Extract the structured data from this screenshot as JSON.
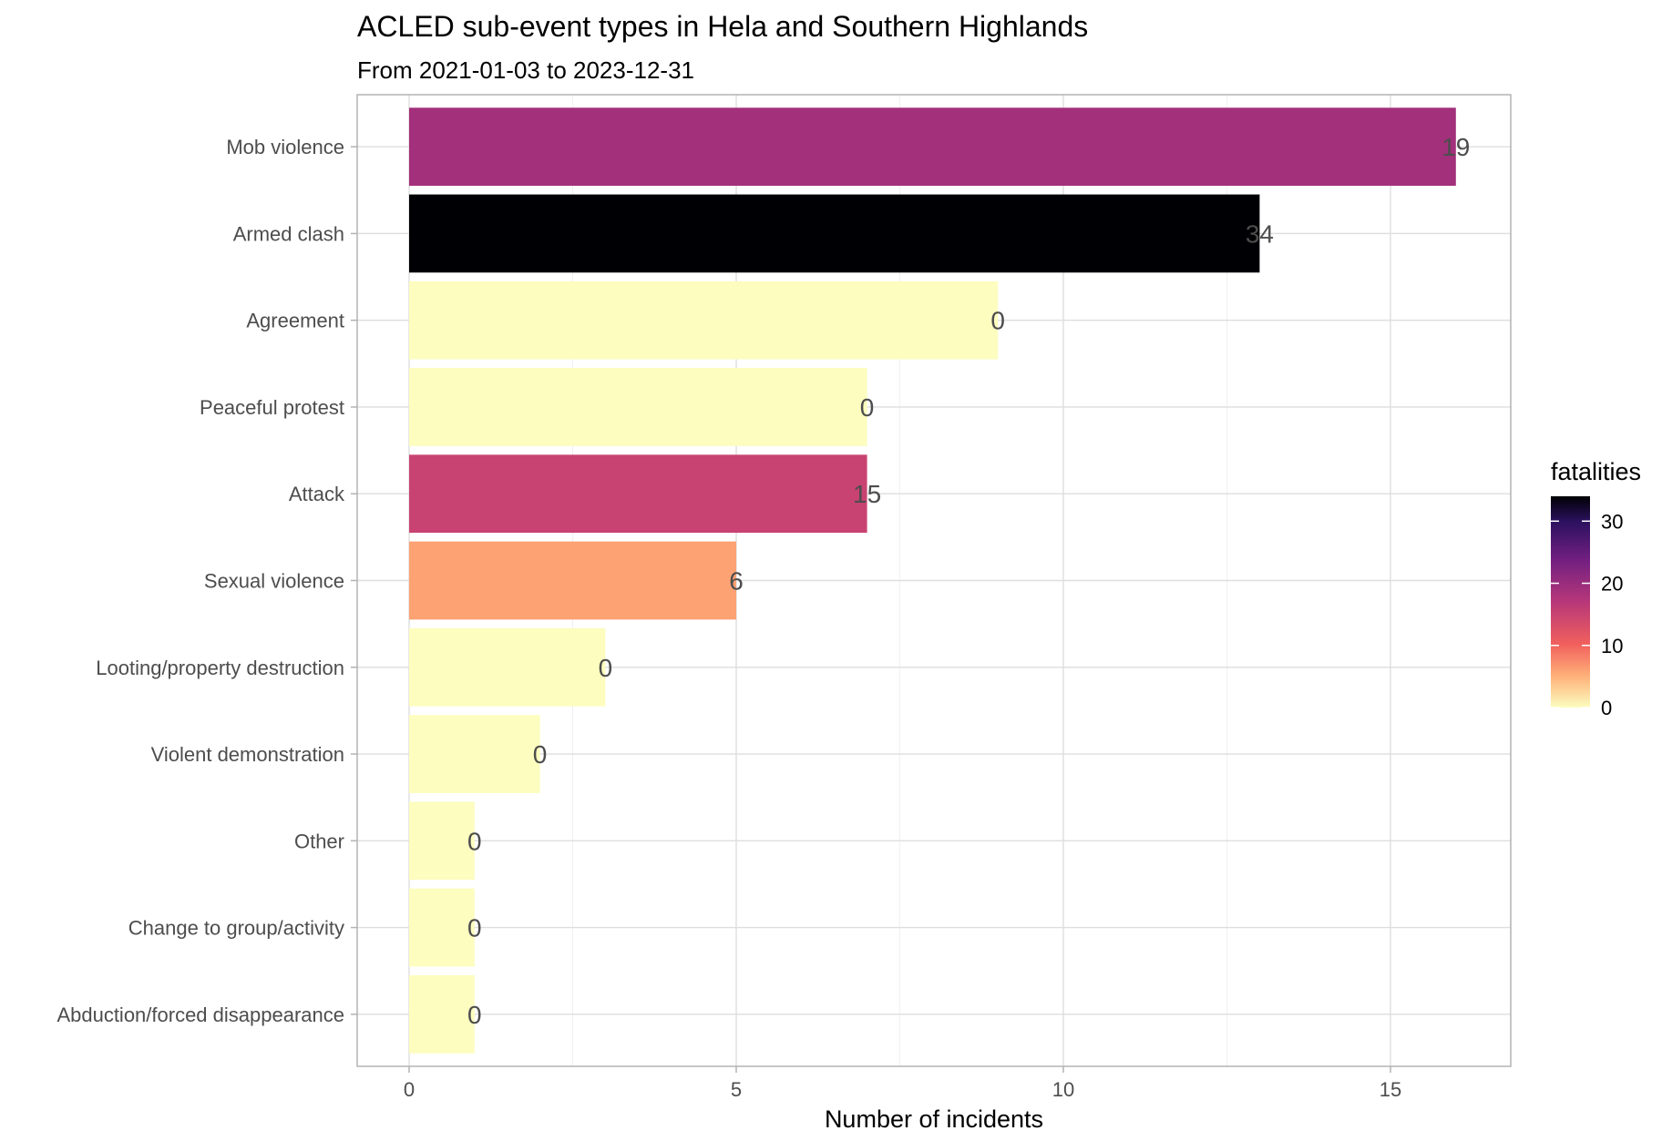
{
  "chart_data": {
    "type": "bar",
    "orientation": "horizontal",
    "title": "ACLED sub-event types in Hela and Southern Highlands",
    "subtitle": "From 2021-01-03 to 2023-12-31",
    "xlabel": "Number of incidents",
    "ylabel": "",
    "xlim": [
      0,
      17.6
    ],
    "xticks": [
      0,
      5,
      10,
      15
    ],
    "grid": true,
    "categories": [
      "Mob violence",
      "Armed clash",
      "Agreement",
      "Peaceful protest",
      "Attack",
      "Sexual violence",
      "Looting/property destruction",
      "Violent demonstration",
      "Other",
      "Change to group/activity",
      "Abduction/forced disappearance"
    ],
    "values": [
      16,
      13,
      9,
      7,
      7,
      5,
      3,
      2,
      1,
      1,
      1
    ],
    "fatalities": [
      19,
      34,
      0,
      0,
      15,
      6,
      0,
      0,
      0,
      0,
      0
    ],
    "color_scale": {
      "title": "fatalities",
      "min": 0,
      "max": 34,
      "ticks": [
        0,
        10,
        20,
        30
      ],
      "stops": [
        "#fcfdbf",
        "#feb078",
        "#f1605d",
        "#b73779",
        "#721f81",
        "#2c115f",
        "#000004"
      ],
      "legend_position": "right"
    }
  }
}
